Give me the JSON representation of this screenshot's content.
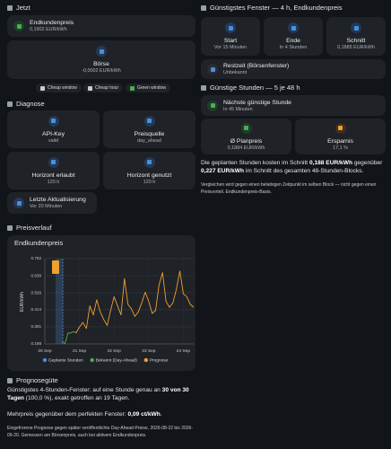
{
  "now": {
    "title": "Jetzt",
    "customer_price": {
      "label": "Endkundenpreis",
      "value": "0,1902 EUR/kWh"
    },
    "exchange": {
      "label": "Börse",
      "value": "-0,0002 EUR/kWh"
    },
    "buttons": [
      "Cheap window",
      "Cheap hour",
      "Green window"
    ]
  },
  "diagnose": {
    "title": "Diagnose",
    "cards": [
      {
        "label": "API-Key",
        "value": "valid"
      },
      {
        "label": "Preisquelle",
        "value": "day_ahead"
      },
      {
        "label": "Horizont erlaubt",
        "value": "120 h"
      },
      {
        "label": "Horizont genutzt",
        "value": "120 h"
      }
    ],
    "last_update": {
      "label": "Letzte Aktualisierung",
      "value": "Vor 20 Minuten"
    }
  },
  "history": {
    "title": "Preisverlauf"
  },
  "chart_data": {
    "type": "line",
    "title": "Endkundenpreis",
    "y_label": "EUR/kWh",
    "xlim": [
      0,
      4.3
    ],
    "xticks": [
      {
        "value": 0,
        "label": "20 Sep"
      },
      {
        "value": 1,
        "label": "21 Sep"
      },
      {
        "value": 2,
        "label": "22 Sep"
      },
      {
        "value": 3,
        "label": "23 Sep"
      },
      {
        "value": 4,
        "label": "24 Sep"
      }
    ],
    "ylim": [
      0.188,
      0.752
    ],
    "yticks": [
      0.188,
      0.301,
      0.414,
      0.526,
      0.639,
      0.752
    ],
    "grid": true,
    "planned": {
      "name": "Geplante Stunden",
      "color": "#4a90d9",
      "x": [
        0.31,
        0.52
      ]
    },
    "series": [
      {
        "name": "Bekannt (Day-Ahead)",
        "color": "#4caf50",
        "x": [
          0.5,
          0.58,
          0.67,
          0.75,
          0.83,
          0.92
        ],
        "values": [
          0.2,
          0.19,
          0.26,
          0.26,
          0.27,
          0.26
        ]
      },
      {
        "name": "Prognose",
        "color": "#f0a030",
        "x": [
          0.9,
          1.0,
          1.1,
          1.2,
          1.3,
          1.4,
          1.5,
          1.6,
          1.7,
          1.8,
          1.9,
          2.0,
          2.1,
          2.2,
          2.3,
          2.4,
          2.5,
          2.6,
          2.7,
          2.8,
          2.9,
          3.0,
          3.1,
          3.2,
          3.3,
          3.4,
          3.5,
          3.6,
          3.7,
          3.8,
          3.9,
          4.0,
          4.1,
          4.2,
          4.3
        ],
        "values": [
          0.26,
          0.3,
          0.33,
          0.29,
          0.44,
          0.38,
          0.48,
          0.4,
          0.35,
          0.31,
          0.41,
          0.5,
          0.44,
          0.38,
          0.62,
          0.45,
          0.42,
          0.37,
          0.4,
          0.46,
          0.53,
          0.47,
          0.39,
          0.41,
          0.58,
          0.66,
          0.47,
          0.43,
          0.46,
          0.55,
          0.67,
          0.52,
          0.5,
          0.45,
          0.43
        ]
      }
    ]
  },
  "forecast_quality": {
    "title": "Prognosegüte",
    "line1": [
      "Günstigstes 4-Stunden-Fenster: auf eine Stunde genau an ",
      "30 von 30 Tagen",
      " (100,0 %), exakt getroffen an 19 Tagen."
    ],
    "line2": [
      "Mehrpreis gegenüber dem perfekten Fenster: ",
      "0,09 ct/kWh",
      "."
    ],
    "note": "Eingefrorene Prognose gegen später veröffentlichte Day-Ahead-Preise, 2026-08-22 bis 2026-09-20. Gemessen am Börsenpreis, auch bei aktivem Endkundenpreis."
  },
  "cheapest_window": {
    "title": "Günstigstes Fenster — 4 h, Endkundenpreis",
    "cards": [
      {
        "label": "Start",
        "value": "Vor 15 Minuten"
      },
      {
        "label": "Ende",
        "value": "In 4 Stunden"
      },
      {
        "label": "Schnitt",
        "value": "0,1885 EUR/kWh"
      }
    ],
    "remaining": {
      "label": "Restzeit (Börsenfenster)",
      "value": "Unbekannt"
    }
  },
  "cheap_hours": {
    "title": "Günstige Stunden — 5 je 48 h",
    "next": {
      "label": "Nächste günstige Stunde",
      "value": "In 45 Minuten"
    },
    "cards": [
      {
        "label": "Ø Planpreis",
        "value": "0,1884 EUR/kWh"
      },
      {
        "label": "Ersparnis",
        "value": "17,1 %"
      }
    ],
    "summary": [
      "Die geplanten Stunden kosten im Schnitt ",
      "0,188 EUR/kWh",
      " gegenüber ",
      "0,227 EUR/kWh",
      " im Schnitt des gesamten 48-Stunden-Blocks."
    ],
    "note": "Vergleichen wird gegen einen beliebigen Zeitpunkt im selben Block — nicht gegen einen Preisvorteil. Endkundenpreis-Basis."
  }
}
